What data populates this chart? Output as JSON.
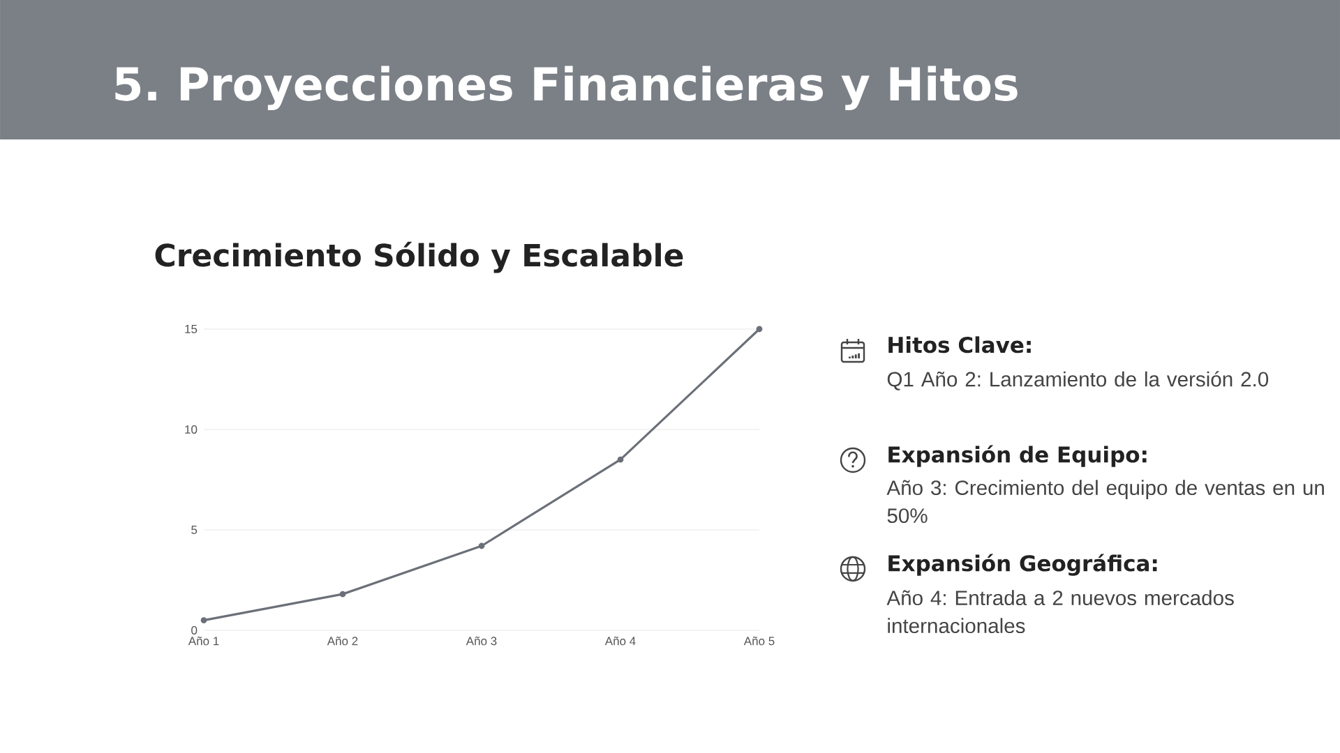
{
  "chart_data": {
    "type": "line",
    "title": "5. Proyecciones Financieras y Hitos",
    "subtitle": "Crecimiento Sólido y Escalable",
    "categories": [
      "Año 1",
      "Año 2",
      "Año 3",
      "Año 4",
      "Año 5"
    ],
    "series": [
      {
        "color": "#6b7078",
        "values": [
          0.5,
          1.8,
          4.2,
          8.5,
          15
        ]
      }
    ],
    "ylim": [
      0,
      15
    ],
    "yticks": [
      0,
      5,
      10,
      15
    ],
    "grid": "y",
    "marker": "circle",
    "line_style": "solid",
    "annotations": [
      "Hitos Clave:",
      "Q1 Año 2: Lanzamiento de la versión 2.0",
      "Expansión de Equipo:",
      "Año 3: Crecimiento del equipo de ventas en un 50%",
      "Expansión Geográfica:",
      "Año 4: Entrada a 2 nuevos mercados internacionales"
    ]
  }
}
